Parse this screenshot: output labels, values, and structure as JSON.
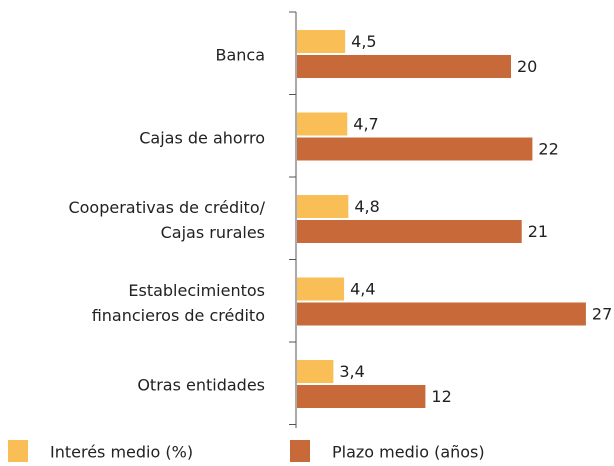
{
  "chart_data": {
    "type": "bar",
    "orientation": "horizontal",
    "categories": [
      "Banca",
      "Cajas de ahorro",
      "Cooperativas de crédito/\nCajas rurales",
      "Establecimientos\nfinancieros de crédito",
      "Otras entidades"
    ],
    "series": [
      {
        "name": "Interés medio (%)",
        "color": "#f9be55",
        "values": [
          4.5,
          4.7,
          4.8,
          4.4,
          3.4
        ],
        "value_labels": [
          "4,5",
          "4,7",
          "4,8",
          "4,4",
          "3,4"
        ]
      },
      {
        "name": "Plazo medio (años)",
        "color": "#c8693a",
        "values": [
          20,
          22,
          21,
          27,
          12
        ]
      }
    ],
    "legend": "bottom"
  }
}
